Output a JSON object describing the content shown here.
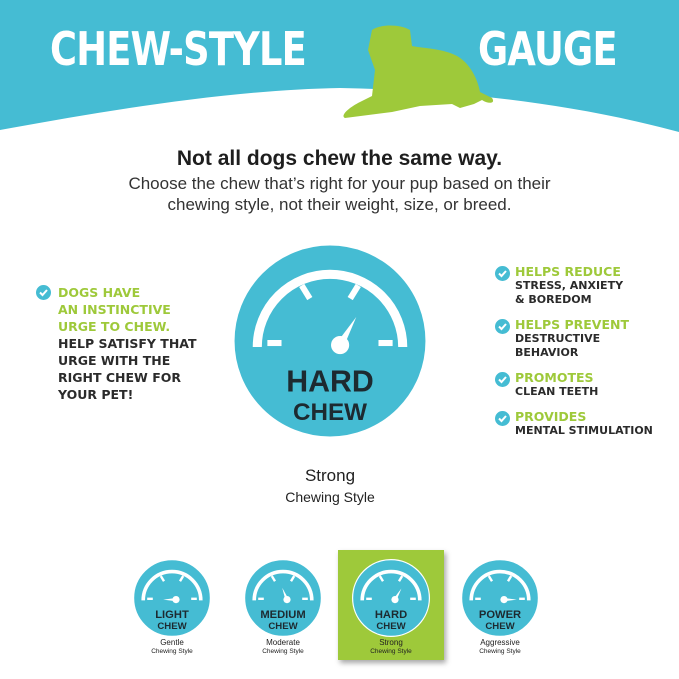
{
  "colors": {
    "teal": "#45bcd3",
    "green": "#9ec93a",
    "dark": "#2b2b2b"
  },
  "banner": {
    "title_left": "CHEW-STYLE",
    "title_right": "GAUGE",
    "logo": "dog-silhouette-icon"
  },
  "intro": {
    "headline": "Not all dogs chew the same way.",
    "line1": "Choose the chew that’s right for your pup based on their",
    "line2": "chewing style, not their weight, size, or breed."
  },
  "left_note": {
    "highlight": [
      "DOGS HAVE",
      "AN INSTINCTIVE",
      "URGE TO CHEW."
    ],
    "body": [
      "HELP SATISFY THAT",
      "URGE WITH THE",
      "RIGHT CHEW FOR",
      "YOUR PET!"
    ]
  },
  "benefits": [
    {
      "title": "HELPS REDUCE",
      "lines": [
        "STRESS, ANXIETY",
        "& BOREDOM"
      ]
    },
    {
      "title": "HELPS PREVENT",
      "lines": [
        "DESTRUCTIVE",
        "BEHAVIOR"
      ]
    },
    {
      "title": "PROMOTES",
      "lines": [
        "CLEAN TEETH"
      ]
    },
    {
      "title": "PROVIDES",
      "lines": [
        "MENTAL STIMULATION"
      ]
    }
  ],
  "main_gauge": {
    "line1": "HARD",
    "line2": "CHEW",
    "needle_deg": 60,
    "caption": "Strong",
    "caption_sub": "Chewing Style"
  },
  "levels": [
    {
      "line1": "LIGHT",
      "line2": "CHEW",
      "needle_deg": 180,
      "caption": "Gentle",
      "caption_sub": "Chewing Style",
      "selected": false
    },
    {
      "line1": "MEDIUM",
      "line2": "CHEW",
      "needle_deg": 112,
      "caption": "Moderate",
      "caption_sub": "Chewing Style",
      "selected": false
    },
    {
      "line1": "HARD",
      "line2": "CHEW",
      "needle_deg": 60,
      "caption": "Strong",
      "caption_sub": "Chewing Style",
      "selected": true
    },
    {
      "line1": "POWER",
      "line2": "CHEW",
      "needle_deg": 0,
      "caption": "Aggressive",
      "caption_sub": "Chewing Style",
      "selected": false
    }
  ]
}
